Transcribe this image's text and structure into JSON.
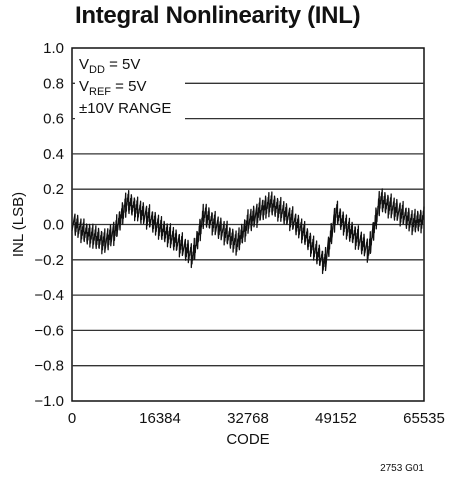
{
  "chart_data": {
    "type": "line",
    "title": "Integral Nonlinearity (INL)",
    "xlabel": "CODE",
    "ylabel": "INL (LSB)",
    "xlim": [
      0,
      65535
    ],
    "ylim": [
      -1.0,
      1.0
    ],
    "x_ticks": [
      0,
      16384,
      32768,
      49152,
      65535
    ],
    "x_tick_labels": [
      "0",
      "16384",
      "32768",
      "49152",
      "65535"
    ],
    "y_ticks": [
      1.0,
      0.8,
      0.6,
      0.4,
      0.2,
      0.0,
      -0.2,
      -0.4,
      -0.6,
      -0.8,
      -1.0
    ],
    "y_tick_labels": [
      "1.0",
      "0.8",
      "0.6",
      "0.4",
      "0.2",
      "0.0",
      "−0.2",
      "−0.4",
      "−0.6",
      "−0.8",
      "−1.0"
    ],
    "grid": true,
    "annotations": [
      {
        "base": "V",
        "sub": "DD",
        "rest": " = 5V"
      },
      {
        "base": "V",
        "sub": "REF",
        "rest": " = 5V"
      },
      {
        "base": "±10V RANGE",
        "sub": "",
        "rest": ""
      }
    ],
    "figure_id": "2753 G01",
    "series": [
      {
        "x": [
          0,
          2048,
          4096,
          6144,
          8192,
          10240,
          12288,
          14336,
          16384,
          18432,
          20480,
          22528,
          24576,
          26624,
          28672,
          30720,
          32768,
          34816,
          36864,
          38912,
          40960,
          43008,
          45056,
          47104,
          49152,
          51200,
          53248,
          55296,
          57344,
          59392,
          61440,
          63488,
          65535
        ],
        "y": [
          0.02,
          -0.04,
          -0.07,
          -0.1,
          -0.03,
          0.13,
          0.08,
          0.04,
          -0.02,
          -0.07,
          -0.12,
          -0.18,
          0.06,
          0.0,
          -0.05,
          -0.11,
          0.01,
          0.07,
          0.12,
          0.08,
          0.03,
          -0.04,
          -0.14,
          -0.22,
          0.07,
          -0.02,
          -0.08,
          -0.15,
          0.14,
          0.1,
          0.06,
          0.01,
          0.03
        ]
      }
    ]
  }
}
